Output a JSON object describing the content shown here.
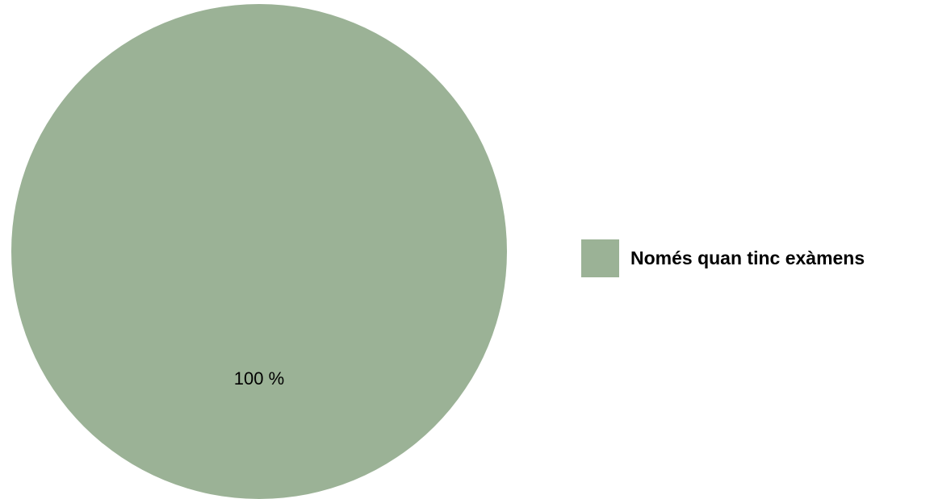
{
  "chart_data": {
    "type": "pie",
    "slices": [
      {
        "label": "Només quan tinc exàmens",
        "value": 100,
        "value_label": "100 %",
        "color": "#9bb296"
      }
    ],
    "legend_position": "right"
  }
}
